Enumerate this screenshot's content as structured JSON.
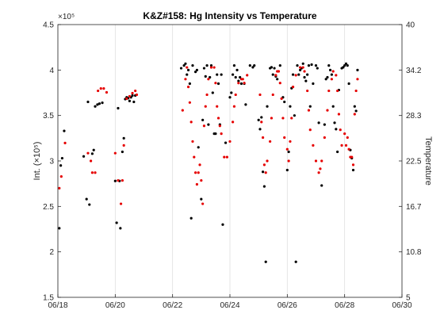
{
  "chart_data": {
    "type": "scatter",
    "title": "K&Z#158: Hg Intensity vs Temperature",
    "xlabel": "",
    "ylabel_left": "Int. (×10⁵)",
    "ylabel_right": "Temperature",
    "left_exponent_label": "×10⁵",
    "x_tick_labels": [
      "06/18",
      "06/20",
      "06/22",
      "06/24",
      "06/26",
      "06/28",
      "06/30"
    ],
    "x_tick_values": [
      0,
      2,
      4,
      6,
      8,
      10,
      12
    ],
    "xlim": [
      0,
      12
    ],
    "ylim_left": [
      1.5,
      4.5
    ],
    "left_tick_labels": [
      "1.5",
      "2",
      "2.5",
      "3",
      "3.5",
      "4",
      "4.5"
    ],
    "left_tick_values": [
      1.5,
      2,
      2.5,
      3,
      3.5,
      4,
      4.5
    ],
    "ylim_right": [
      5,
      40
    ],
    "right_tick_labels": [
      "5",
      "10.8",
      "16.7",
      "22.5",
      "28.3",
      "34.2",
      "40"
    ],
    "right_tick_values": [
      5,
      10.83,
      16.67,
      22.5,
      28.33,
      34.17,
      40
    ],
    "grid_x": true,
    "grid_y": false,
    "series": [
      {
        "axis": "left",
        "color": "#000000",
        "points": [
          [
            0.05,
            2.26
          ],
          [
            0.1,
            2.95
          ],
          [
            0.15,
            3.03
          ],
          [
            0.22,
            3.33
          ],
          [
            0.9,
            3.05
          ],
          [
            1.0,
            2.58
          ],
          [
            1.05,
            3.65
          ],
          [
            1.1,
            2.52
          ],
          [
            1.2,
            3.08
          ],
          [
            1.25,
            3.12
          ],
          [
            1.3,
            3.6
          ],
          [
            1.38,
            3.62
          ],
          [
            1.45,
            3.63
          ],
          [
            1.55,
            3.64
          ],
          [
            2.0,
            2.78
          ],
          [
            2.05,
            2.32
          ],
          [
            2.15,
            2.78
          ],
          [
            2.18,
            2.26
          ],
          [
            2.1,
            3.58
          ],
          [
            2.25,
            3.1
          ],
          [
            2.3,
            3.25
          ],
          [
            2.35,
            3.68
          ],
          [
            2.4,
            3.7
          ],
          [
            2.45,
            3.69
          ],
          [
            2.5,
            3.66
          ],
          [
            2.55,
            3.7
          ],
          [
            2.6,
            3.72
          ],
          [
            2.7,
            3.72
          ],
          [
            2.65,
            3.65
          ],
          [
            4.3,
            4.02
          ],
          [
            4.4,
            4.05
          ],
          [
            4.45,
            4.07
          ],
          [
            4.5,
            3.95
          ],
          [
            4.55,
            4.0
          ],
          [
            4.6,
            3.85
          ],
          [
            4.65,
            2.37
          ],
          [
            4.7,
            4.05
          ],
          [
            4.8,
            3.98
          ],
          [
            4.85,
            4.0
          ],
          [
            4.9,
            3.15
          ],
          [
            5.0,
            2.58
          ],
          [
            5.05,
            3.45
          ],
          [
            5.1,
            4.02
          ],
          [
            5.15,
            3.93
          ],
          [
            5.2,
            4.05
          ],
          [
            5.25,
            3.4
          ],
          [
            5.3,
            3.92
          ],
          [
            5.35,
            4.05
          ],
          [
            5.4,
            3.75
          ],
          [
            5.45,
            3.3
          ],
          [
            5.5,
            3.3
          ],
          [
            5.55,
            3.95
          ],
          [
            5.6,
            3.85
          ],
          [
            5.65,
            3.4
          ],
          [
            5.7,
            3.95
          ],
          [
            5.75,
            2.3
          ],
          [
            5.85,
            3.2
          ],
          [
            6.0,
            3.7
          ],
          [
            6.05,
            3.75
          ],
          [
            6.1,
            3.95
          ],
          [
            6.15,
            4.05
          ],
          [
            6.2,
            3.92
          ],
          [
            6.25,
            4.0
          ],
          [
            6.3,
            3.88
          ],
          [
            6.35,
            3.92
          ],
          [
            6.4,
            3.85
          ],
          [
            6.5,
            3.85
          ],
          [
            6.55,
            3.62
          ],
          [
            6.7,
            4.05
          ],
          [
            6.8,
            4.03
          ],
          [
            6.85,
            4.05
          ],
          [
            7.0,
            3.45
          ],
          [
            7.05,
            3.35
          ],
          [
            7.1,
            3.48
          ],
          [
            7.15,
            2.88
          ],
          [
            7.2,
            2.72
          ],
          [
            7.25,
            1.89
          ],
          [
            7.3,
            3.6
          ],
          [
            7.4,
            4.02
          ],
          [
            7.45,
            4.03
          ],
          [
            7.5,
            3.95
          ],
          [
            7.55,
            4.02
          ],
          [
            7.6,
            3.93
          ],
          [
            7.65,
            3.9
          ],
          [
            7.75,
            4.05
          ],
          [
            7.85,
            3.7
          ],
          [
            7.9,
            3.65
          ],
          [
            8.0,
            2.9
          ],
          [
            8.05,
            3.1
          ],
          [
            8.1,
            3.6
          ],
          [
            8.15,
            3.8
          ],
          [
            8.2,
            3.95
          ],
          [
            8.25,
            3.5
          ],
          [
            8.3,
            1.89
          ],
          [
            8.35,
            4.05
          ],
          [
            8.4,
            3.95
          ],
          [
            8.45,
            4.0
          ],
          [
            8.5,
            4.02
          ],
          [
            8.55,
            4.07
          ],
          [
            8.6,
            3.92
          ],
          [
            8.65,
            3.88
          ],
          [
            8.7,
            3.95
          ],
          [
            8.75,
            4.05
          ],
          [
            8.8,
            3.6
          ],
          [
            8.85,
            4.06
          ],
          [
            8.9,
            3.85
          ],
          [
            9.0,
            4.05
          ],
          [
            9.05,
            4.02
          ],
          [
            9.1,
            3.42
          ],
          [
            9.2,
            2.73
          ],
          [
            9.3,
            3.4
          ],
          [
            9.35,
            3.9
          ],
          [
            9.4,
            3.92
          ],
          [
            9.45,
            4.05
          ],
          [
            9.5,
            4.0
          ],
          [
            9.55,
            3.95
          ],
          [
            9.6,
            3.6
          ],
          [
            9.65,
            3.42
          ],
          [
            9.7,
            3.35
          ],
          [
            9.75,
            3.1
          ],
          [
            9.8,
            3.78
          ],
          [
            9.9,
            4.02
          ],
          [
            9.95,
            4.03
          ],
          [
            10.0,
            4.05
          ],
          [
            10.05,
            4.07
          ],
          [
            10.1,
            4.05
          ],
          [
            10.15,
            3.85
          ],
          [
            10.2,
            3.12
          ],
          [
            10.25,
            3.03
          ],
          [
            10.3,
            2.9
          ],
          [
            10.35,
            3.6
          ],
          [
            10.4,
            3.55
          ],
          [
            10.45,
            4.0
          ]
        ]
      },
      {
        "axis": "right",
        "color": "#e60000",
        "points": [
          [
            0.05,
            19.0
          ],
          [
            0.12,
            20.5
          ],
          [
            0.25,
            24.8
          ],
          [
            1.05,
            23.5
          ],
          [
            1.15,
            22.5
          ],
          [
            1.2,
            21.0
          ],
          [
            1.3,
            21.0
          ],
          [
            1.4,
            31.5
          ],
          [
            1.5,
            31.8
          ],
          [
            1.6,
            31.8
          ],
          [
            1.7,
            31.3
          ],
          [
            2.0,
            23.5
          ],
          [
            2.1,
            20.0
          ],
          [
            2.2,
            17.0
          ],
          [
            2.25,
            20.0
          ],
          [
            2.3,
            24.5
          ],
          [
            2.4,
            30.5
          ],
          [
            2.5,
            30.8
          ],
          [
            2.6,
            31.2
          ],
          [
            2.7,
            31.5
          ],
          [
            2.75,
            31.0
          ],
          [
            4.35,
            29.0
          ],
          [
            4.45,
            33.0
          ],
          [
            4.5,
            34.5
          ],
          [
            4.55,
            32.0
          ],
          [
            4.6,
            30.0
          ],
          [
            4.65,
            27.5
          ],
          [
            4.7,
            25.0
          ],
          [
            4.75,
            23.0
          ],
          [
            4.8,
            21.0
          ],
          [
            4.85,
            19.5
          ],
          [
            4.9,
            21.0
          ],
          [
            4.95,
            22.0
          ],
          [
            5.0,
            20.0
          ],
          [
            5.05,
            17.0
          ],
          [
            5.1,
            27.0
          ],
          [
            5.15,
            29.5
          ],
          [
            5.2,
            31.0
          ],
          [
            5.25,
            33.0
          ],
          [
            5.35,
            34.5
          ],
          [
            5.45,
            34.5
          ],
          [
            5.5,
            32.5
          ],
          [
            5.55,
            29.5
          ],
          [
            5.6,
            28.0
          ],
          [
            5.65,
            27.0
          ],
          [
            5.7,
            26.0
          ],
          [
            5.8,
            23.0
          ],
          [
            5.9,
            23.0
          ],
          [
            6.0,
            25.0
          ],
          [
            6.1,
            27.5
          ],
          [
            6.15,
            29.5
          ],
          [
            6.2,
            31.0
          ],
          [
            6.3,
            32.5
          ],
          [
            6.4,
            33.0
          ],
          [
            6.45,
            33.0
          ],
          [
            6.5,
            32.5
          ],
          [
            6.6,
            33.5
          ],
          [
            7.05,
            31.0
          ],
          [
            7.1,
            27.5
          ],
          [
            7.15,
            25.5
          ],
          [
            7.2,
            22.0
          ],
          [
            7.25,
            21.0
          ],
          [
            7.3,
            22.5
          ],
          [
            7.4,
            25.0
          ],
          [
            7.45,
            28.0
          ],
          [
            7.5,
            31.0
          ],
          [
            7.6,
            33.5
          ],
          [
            7.65,
            34.0
          ],
          [
            7.7,
            34.0
          ],
          [
            7.75,
            32.5
          ],
          [
            7.8,
            30.5
          ],
          [
            7.85,
            28.0
          ],
          [
            7.9,
            25.5
          ],
          [
            8.0,
            24.0
          ],
          [
            8.05,
            22.5
          ],
          [
            8.1,
            25.0
          ],
          [
            8.15,
            28.0
          ],
          [
            8.2,
            32.0
          ],
          [
            8.3,
            33.5
          ],
          [
            8.45,
            34.5
          ],
          [
            8.55,
            34.5
          ],
          [
            8.6,
            34.0
          ],
          [
            8.7,
            31.5
          ],
          [
            8.75,
            29.0
          ],
          [
            8.8,
            26.5
          ],
          [
            8.9,
            24.5
          ],
          [
            9.0,
            22.5
          ],
          [
            9.1,
            21.0
          ],
          [
            9.15,
            21.5
          ],
          [
            9.2,
            22.5
          ],
          [
            9.3,
            25.5
          ],
          [
            9.4,
            29.0
          ],
          [
            9.45,
            31.5
          ],
          [
            9.55,
            33.0
          ],
          [
            9.6,
            34.0
          ],
          [
            9.7,
            33.5
          ],
          [
            9.75,
            31.5
          ],
          [
            9.8,
            28.5
          ],
          [
            9.85,
            26.5
          ],
          [
            9.9,
            24.5
          ],
          [
            10.0,
            26.0
          ],
          [
            10.05,
            24.5
          ],
          [
            10.1,
            25.5
          ],
          [
            10.15,
            24.0
          ],
          [
            10.2,
            23.0
          ],
          [
            10.25,
            23.0
          ],
          [
            10.3,
            22.0
          ],
          [
            10.35,
            28.5
          ],
          [
            10.4,
            31.5
          ],
          [
            10.45,
            33.0
          ]
        ]
      }
    ]
  }
}
